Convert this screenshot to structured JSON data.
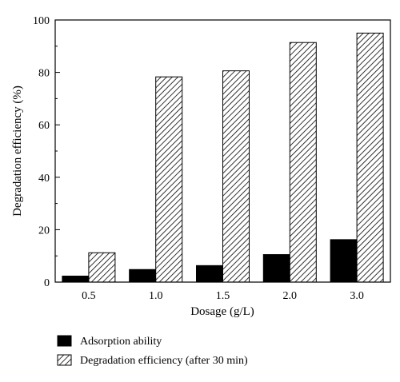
{
  "chart_data": {
    "type": "bar",
    "xlabel": "Dosage (g/L)",
    "ylabel": "Degradation efficiency (%)",
    "ylim": [
      0,
      100
    ],
    "yticks": [
      0,
      20,
      40,
      60,
      80,
      100
    ],
    "categories": [
      "0.5",
      "1.0",
      "1.5",
      "2.0",
      "3.0"
    ],
    "series": [
      {
        "name": "Adsorption ability",
        "values": [
          2.3,
          4.8,
          6.3,
          10.5,
          16.2
        ],
        "fill": "solid",
        "color": "#000000"
      },
      {
        "name": "Degradation efficiency (after 30 min)",
        "values": [
          11.2,
          78.3,
          80.6,
          91.4,
          95.0
        ],
        "fill": "hatch",
        "color": "#000000"
      }
    ],
    "legend_position": "bottom-left",
    "grid": false
  }
}
